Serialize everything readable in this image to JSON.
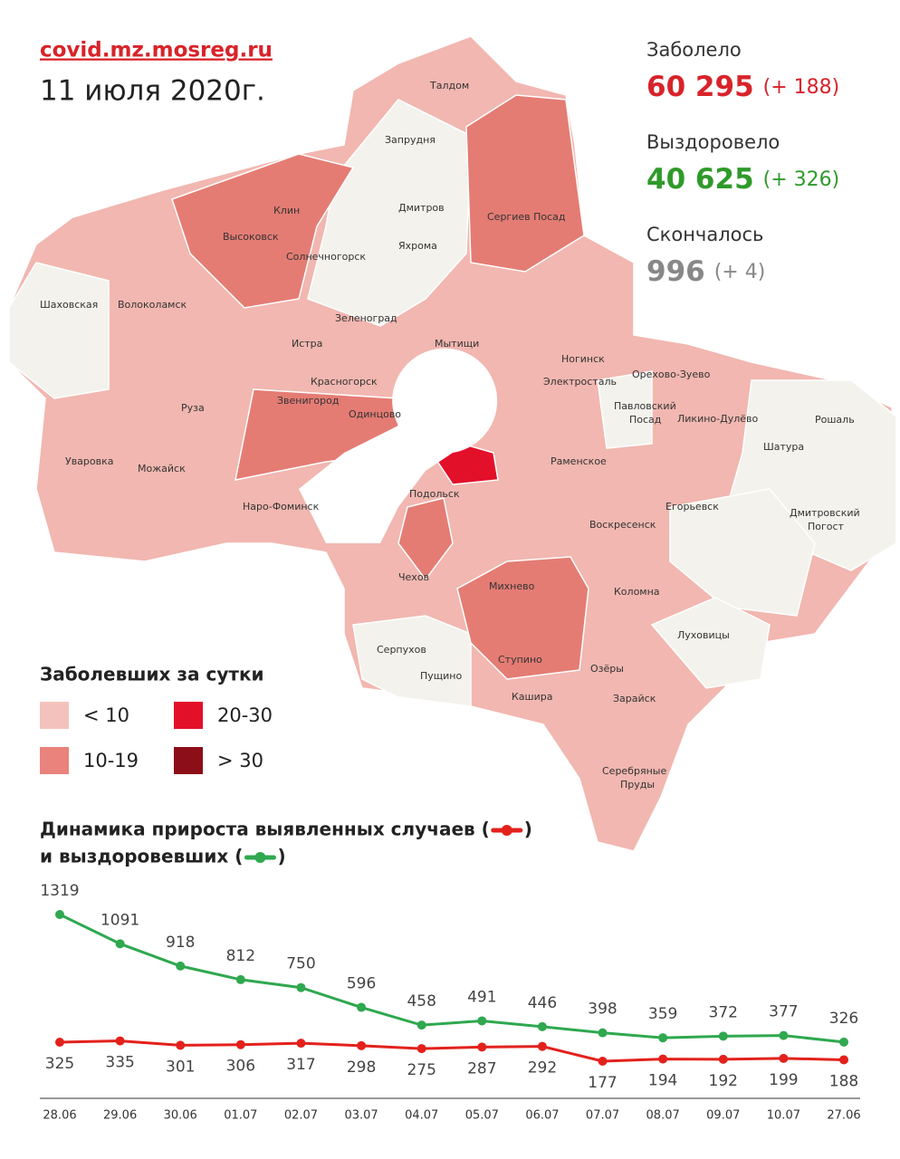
{
  "header": {
    "site": "covid.mz.mosreg.ru",
    "date": "11 июля 2020г."
  },
  "stats": [
    {
      "label": "Заболело",
      "value": "60 295",
      "delta": "(+ 188)"
    },
    {
      "label": "Выздоровело",
      "value": "40 625",
      "delta": "(+ 326)"
    },
    {
      "label": "Скончалось",
      "value": "996",
      "delta": "(+ 4)"
    }
  ],
  "legend": {
    "title": "Заболевших за сутки",
    "items": [
      "< 10",
      "10-19",
      "20-30",
      "> 30"
    ]
  },
  "map": {
    "labels": [
      "Талдом",
      "Запрудня",
      "Дмитров",
      "Яхрома",
      "Сергиев Посад",
      "Клин",
      "Высоковск",
      "Солнечногорск",
      "Шаховская",
      "Волоколамск",
      "Зеленоград",
      "Истра",
      "Мытищи",
      "Красногорск",
      "Звенигород",
      "Одинцово",
      "Руза",
      "Ногинск",
      "Электросталь",
      "Орехово-Зуево",
      "Павловский",
      "Посад",
      "Ликино-Дулёво",
      "Рошаль",
      "Шатура",
      "Раменское",
      "Уваровка",
      "Можайск",
      "Наро-Фоминск",
      "Подольск",
      "Егорьевск",
      "Дмитровский",
      "Погост",
      "Воскресенск",
      "Чехов",
      "Михнево",
      "Коломна",
      "Луховицы",
      "Серпухов",
      "Пущино",
      "Ступино",
      "Озёры",
      "Кашира",
      "Зарайск",
      "Серебряные",
      "Пруды"
    ]
  },
  "chart_data": {
    "type": "line",
    "title": [
      "Динамика прироста выявленных случаев (",
      ")",
      "и выздоровевших (",
      ")"
    ],
    "categories": [
      "28.06",
      "29.06",
      "30.06",
      "01.07",
      "02.07",
      "03.07",
      "04.07",
      "05.07",
      "06.07",
      "07.07",
      "08.07",
      "09.07",
      "10.07",
      "27.06"
    ],
    "series": [
      {
        "color": "#e3211c",
        "values": [
          325,
          335,
          301,
          306,
          317,
          298,
          275,
          287,
          292,
          177,
          194,
          192,
          199,
          188
        ]
      },
      {
        "color": "#2fa84f",
        "values": [
          1319,
          1091,
          918,
          812,
          750,
          596,
          458,
          491,
          446,
          398,
          359,
          372,
          377,
          326
        ]
      }
    ]
  }
}
